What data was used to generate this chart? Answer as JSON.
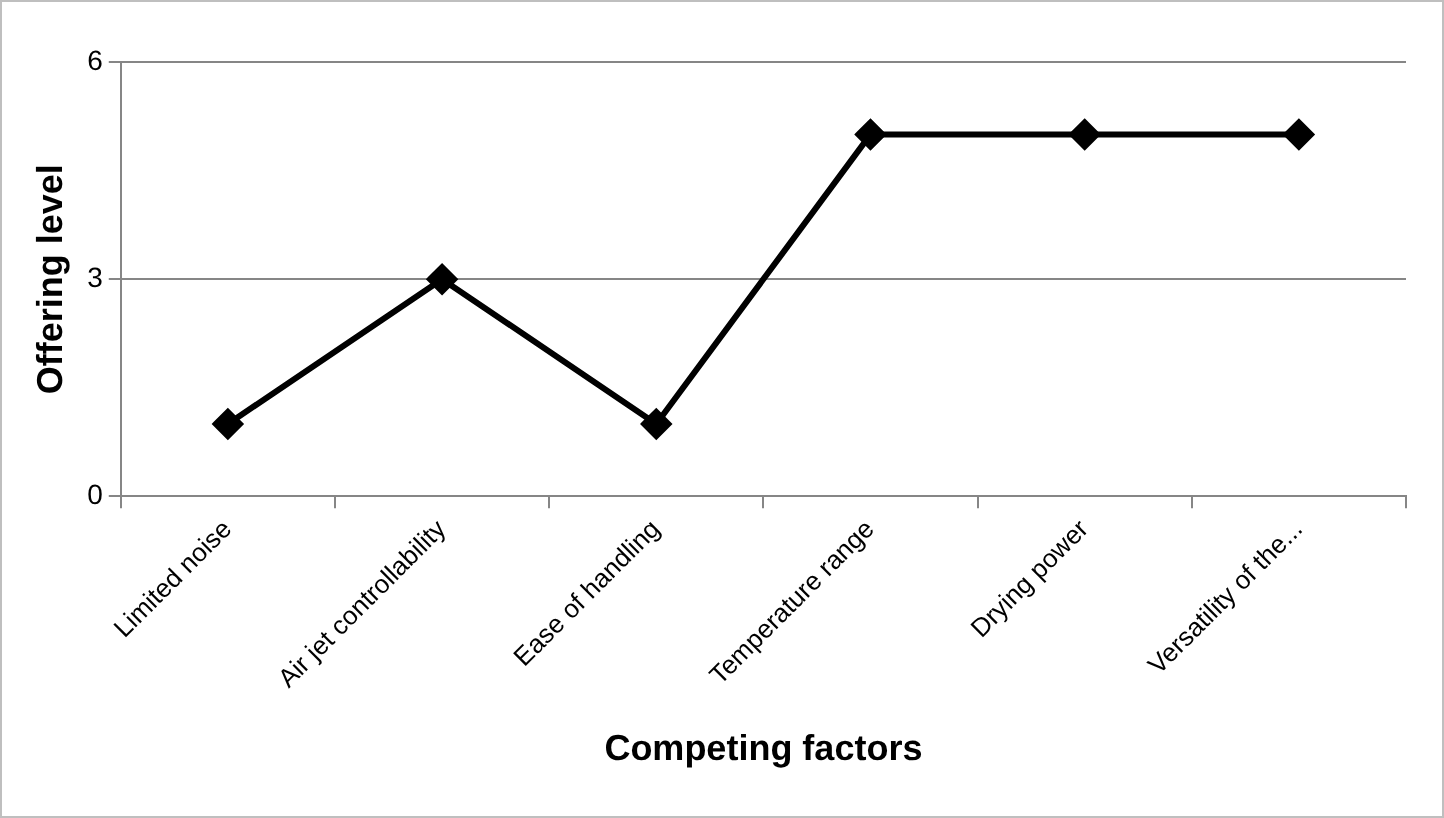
{
  "chart_data": {
    "type": "line",
    "xlabel": "Competing factors",
    "ylabel": "Offering level",
    "categories": [
      "Limited noise",
      "Air jet controllability",
      "Ease of handling",
      "Temperature range",
      "Drying power",
      "Versatility of the..."
    ],
    "series": [
      {
        "color": "#000000",
        "values": [
          1,
          3,
          1,
          5,
          5,
          5
        ]
      }
    ],
    "ylim": [
      0,
      6
    ],
    "yticks": [
      0,
      3,
      6
    ],
    "grid": "y",
    "legend": false,
    "marker": "diamond",
    "line_style": "solid"
  }
}
